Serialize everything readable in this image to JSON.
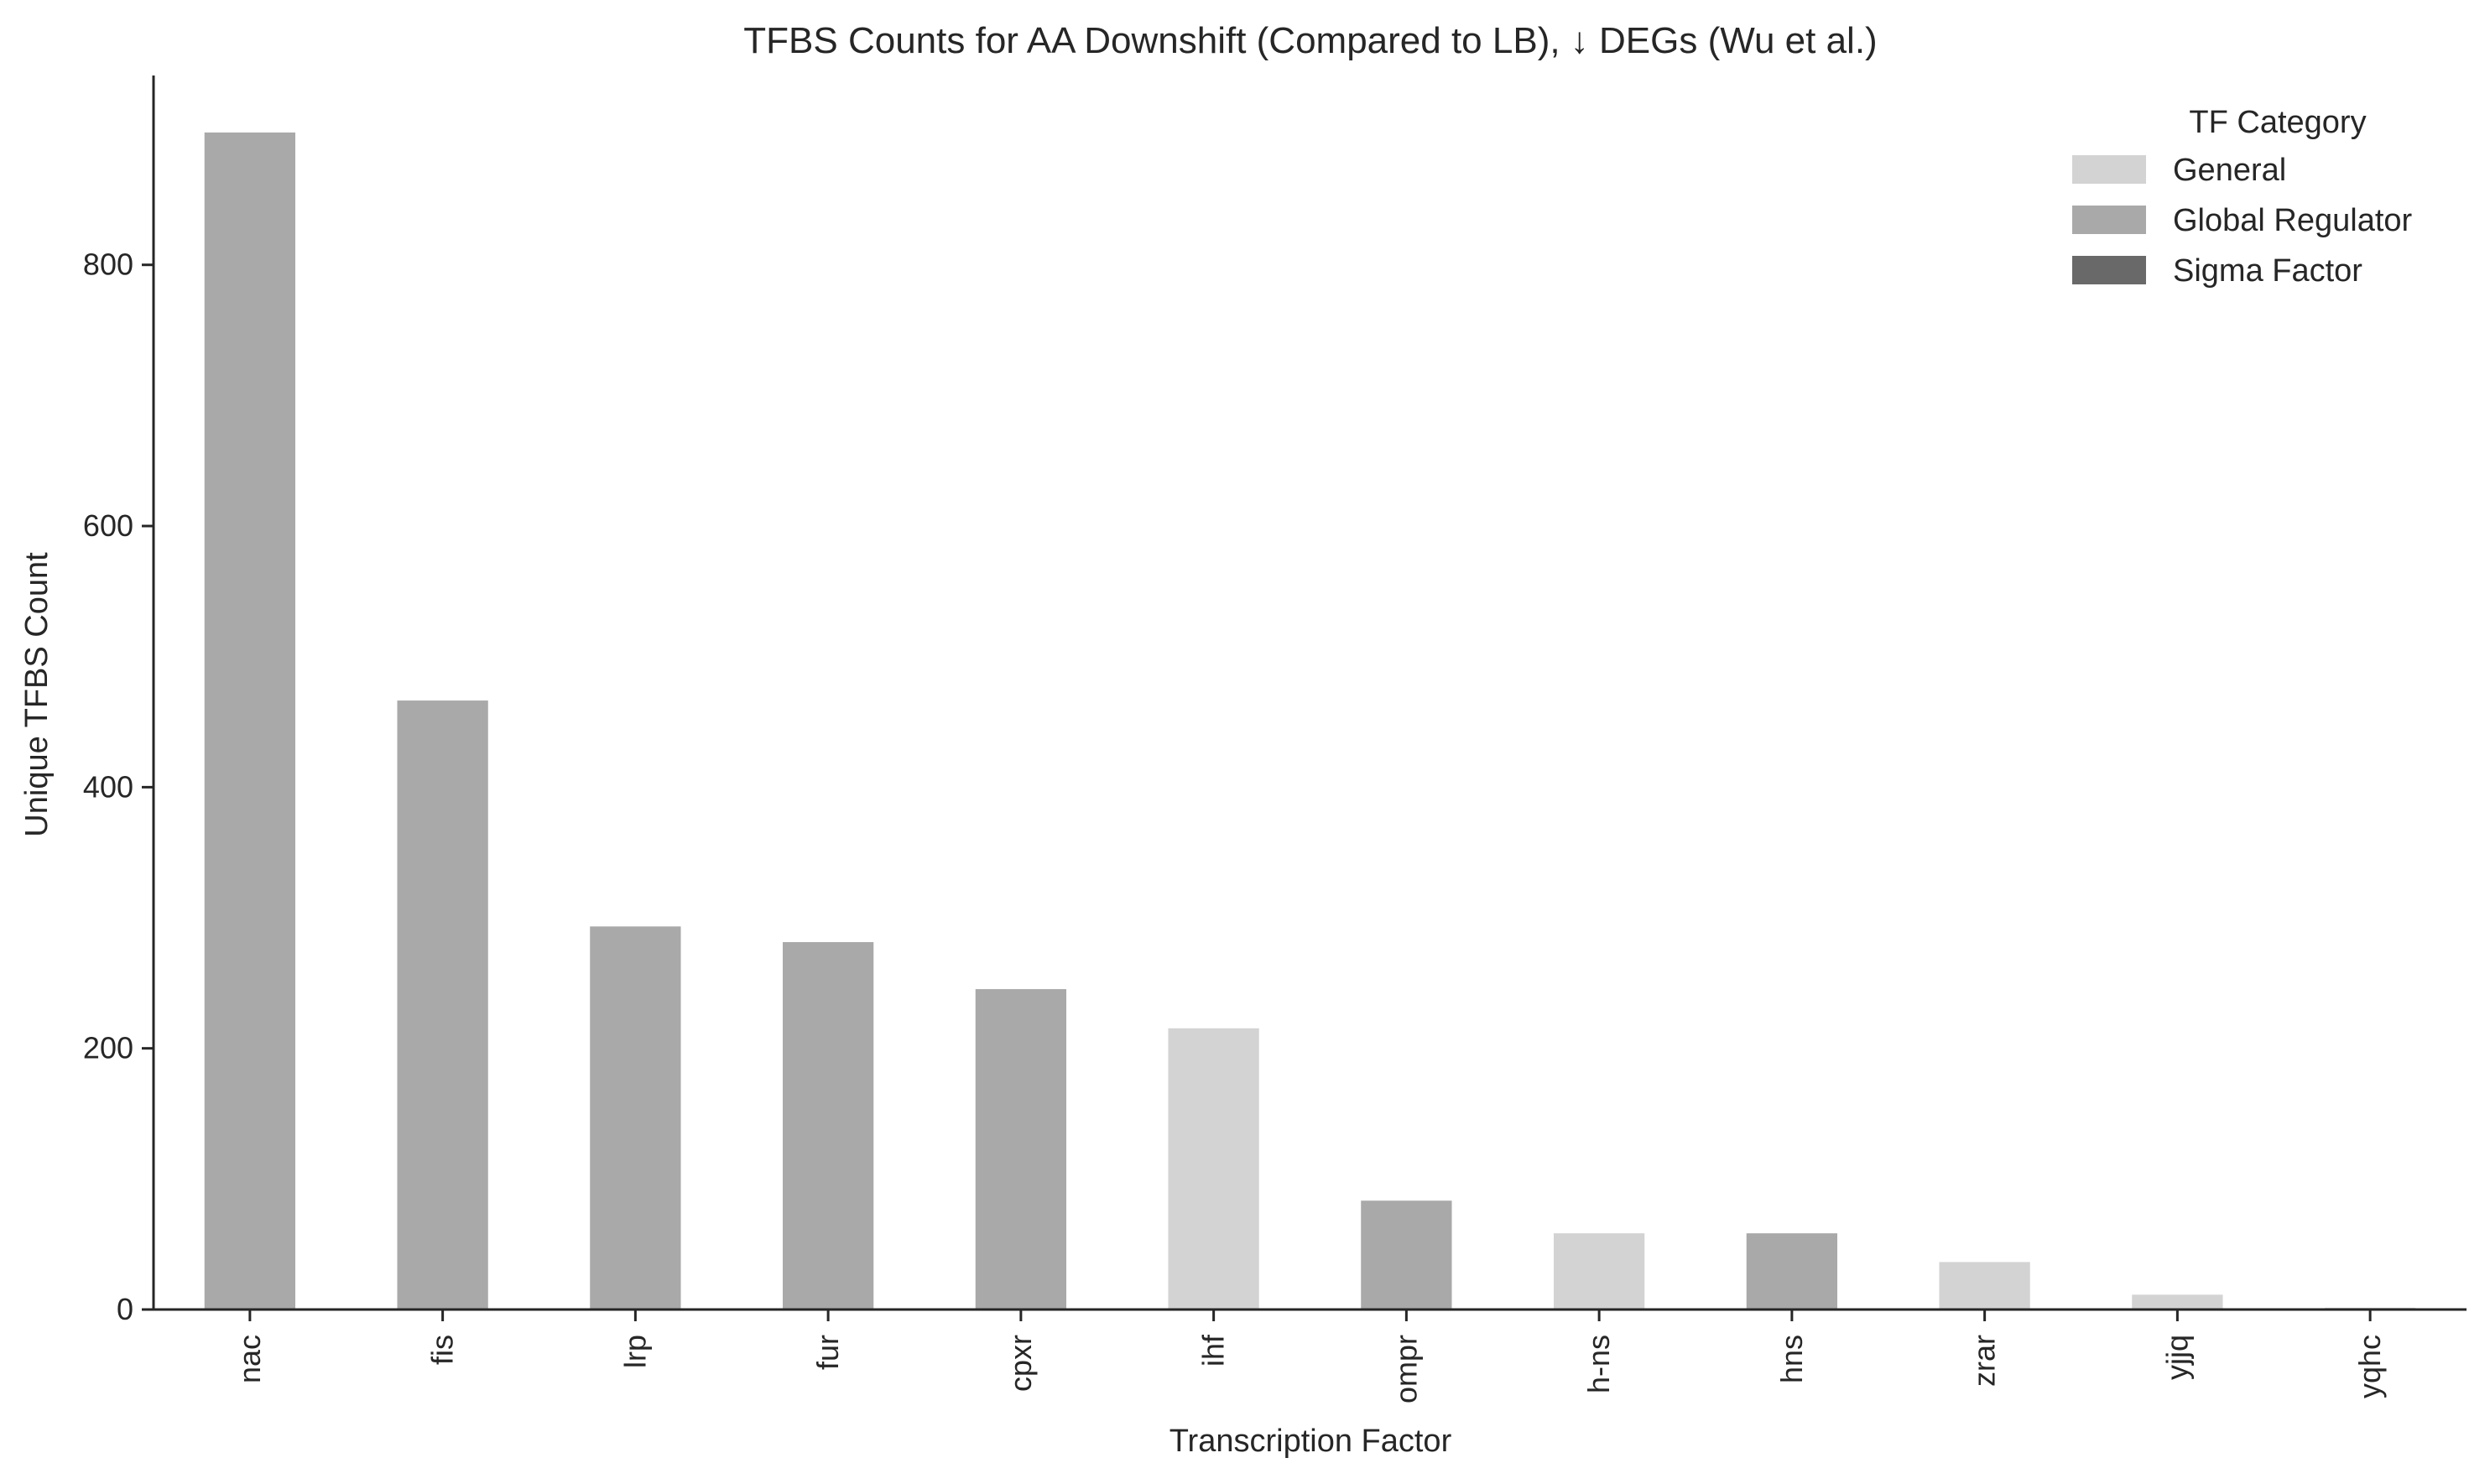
{
  "chart_data": {
    "type": "bar",
    "title": "TFBS Counts for AA Downshift (Compared to LB), ↓ DEGs (Wu et al.)",
    "xlabel": "Transcription Factor",
    "ylabel": "Unique TFBS Count",
    "ylim": [
      0,
      945
    ],
    "yticks": [
      0,
      200,
      400,
      600,
      800
    ],
    "grid": false,
    "legend_placement": "top-right",
    "categories": [
      "nac",
      "fis",
      "lrp",
      "fur",
      "cpxr",
      "ihf",
      "ompr",
      "h-ns",
      "hns",
      "zrar",
      "yjjq",
      "yqhc"
    ],
    "values": [
      902,
      467,
      294,
      282,
      246,
      216,
      84,
      59,
      59,
      37,
      12,
      2
    ],
    "bar_categories": [
      "Global Regulator",
      "Global Regulator",
      "Global Regulator",
      "Global Regulator",
      "Global Regulator",
      "General",
      "Global Regulator",
      "General",
      "Global Regulator",
      "General",
      "General",
      "General"
    ],
    "legend": {
      "title": "TF Category",
      "entries": [
        {
          "name": "General",
          "color": "#d3d3d3"
        },
        {
          "name": "Global Regulator",
          "color": "#a9a9a9"
        },
        {
          "name": "Sigma Factor",
          "color": "#696969"
        }
      ]
    }
  }
}
